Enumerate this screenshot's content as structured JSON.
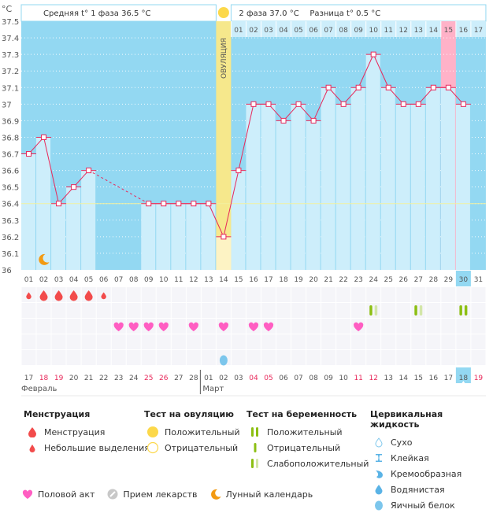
{
  "header": {
    "unit": "°C",
    "phase1_label": "Средняя t° 1 фаза",
    "phase1_value": "36.5 °C",
    "phase2_label": "2 фаза",
    "phase2_value": "37.0 °C",
    "diff_label": "Разница t°",
    "diff_value": "0.5 °C",
    "ovulation_label": "ОВУЛЯЦИЯ"
  },
  "colors": {
    "plot_bg": "#93d8f2",
    "bar": "#cdeefb",
    "line": "#e8285a",
    "ovulation": "#f6e88c",
    "highlight_pink": "#ffb2c8",
    "coverline": "#f2f0a0",
    "today": "#93d8f2"
  },
  "chart_data": {
    "type": "line",
    "title": "",
    "xlabel": "",
    "ylabel": "°C",
    "ylim": [
      36.0,
      37.5
    ],
    "yticks": [
      "36",
      "36.1",
      "36.2",
      "36.3",
      "36.4",
      "36.5",
      "36.6",
      "36.7",
      "36.8",
      "36.9",
      "37",
      "37.1",
      "37.2",
      "37.3",
      "37.4",
      "37.5"
    ],
    "cycle_days": [
      "01",
      "02",
      "03",
      "04",
      "05",
      "06",
      "07",
      "08",
      "09",
      "10",
      "11",
      "12",
      "13",
      "14",
      "15",
      "16",
      "17",
      "18",
      "19",
      "20",
      "21",
      "22",
      "23",
      "24",
      "25",
      "26",
      "27",
      "28",
      "29",
      "30",
      "31"
    ],
    "post_ovulation_days": [
      "01",
      "02",
      "03",
      "04",
      "05",
      "06",
      "07",
      "08",
      "09",
      "10",
      "11",
      "12",
      "13",
      "14",
      "15",
      "16",
      "17"
    ],
    "temperatures": [
      36.7,
      36.8,
      36.4,
      36.5,
      36.6,
      null,
      null,
      null,
      36.4,
      36.4,
      36.4,
      36.4,
      36.4,
      36.2,
      36.6,
      37.0,
      37.0,
      36.9,
      37.0,
      36.9,
      37.1,
      37.0,
      37.1,
      37.3,
      37.1,
      37.0,
      37.0,
      37.1,
      37.1,
      37.0,
      null
    ],
    "coverline": 36.4,
    "ovulation_day": 14,
    "highlight_day": 29,
    "today_day": 30,
    "moon_day": 2,
    "menstruation": [
      {
        "day": 1,
        "type": "light"
      },
      {
        "day": 2,
        "type": "heavy"
      },
      {
        "day": 3,
        "type": "heavy"
      },
      {
        "day": 4,
        "type": "heavy"
      },
      {
        "day": 5,
        "type": "heavy"
      },
      {
        "day": 6,
        "type": "light"
      }
    ],
    "pregnancy_tests": [
      {
        "day": 24,
        "type": "weak"
      },
      {
        "day": 27,
        "type": "weak"
      },
      {
        "day": 30,
        "type": "positive"
      }
    ],
    "intercourse_days": [
      7,
      8,
      9,
      10,
      12,
      14,
      16,
      17,
      23
    ],
    "cervical_fluid": [
      {
        "day": 14,
        "type": "egg-white"
      }
    ],
    "calendar_dates": [
      "17",
      "18",
      "19",
      "20",
      "21",
      "22",
      "23",
      "24",
      "25",
      "26",
      "27",
      "28",
      "01",
      "02",
      "03",
      "04",
      "05",
      "06",
      "07",
      "08",
      "09",
      "10",
      "11",
      "12",
      "13",
      "14",
      "15",
      "16",
      "17",
      "18",
      "19"
    ],
    "weekend_dates_idx": [
      1,
      2,
      8,
      9,
      15,
      16,
      22,
      23,
      30
    ],
    "month_labels": [
      {
        "label": "Февраль",
        "start": 1
      },
      {
        "label": "Март",
        "start": 13
      }
    ]
  },
  "legend": {
    "menstruation": {
      "title": "Менструация",
      "items": [
        "Менструация",
        "Небольшие выделения"
      ]
    },
    "ovulation_test": {
      "title": "Тест на овуляцию",
      "items": [
        "Положительный",
        "Отрицательный"
      ]
    },
    "pregnancy_test": {
      "title": "Тест на беременность",
      "items": [
        "Положительный",
        "Отрицательный",
        "Слабоположительный"
      ]
    },
    "cervical": {
      "title": "Цервикальная жидкость",
      "items": [
        "Сухо",
        "Клейкая",
        "Кремообразная",
        "Водянистая",
        "Яичный белок"
      ]
    },
    "bottom": [
      "Половой акт",
      "Прием лекарств",
      "Лунный календарь"
    ]
  }
}
